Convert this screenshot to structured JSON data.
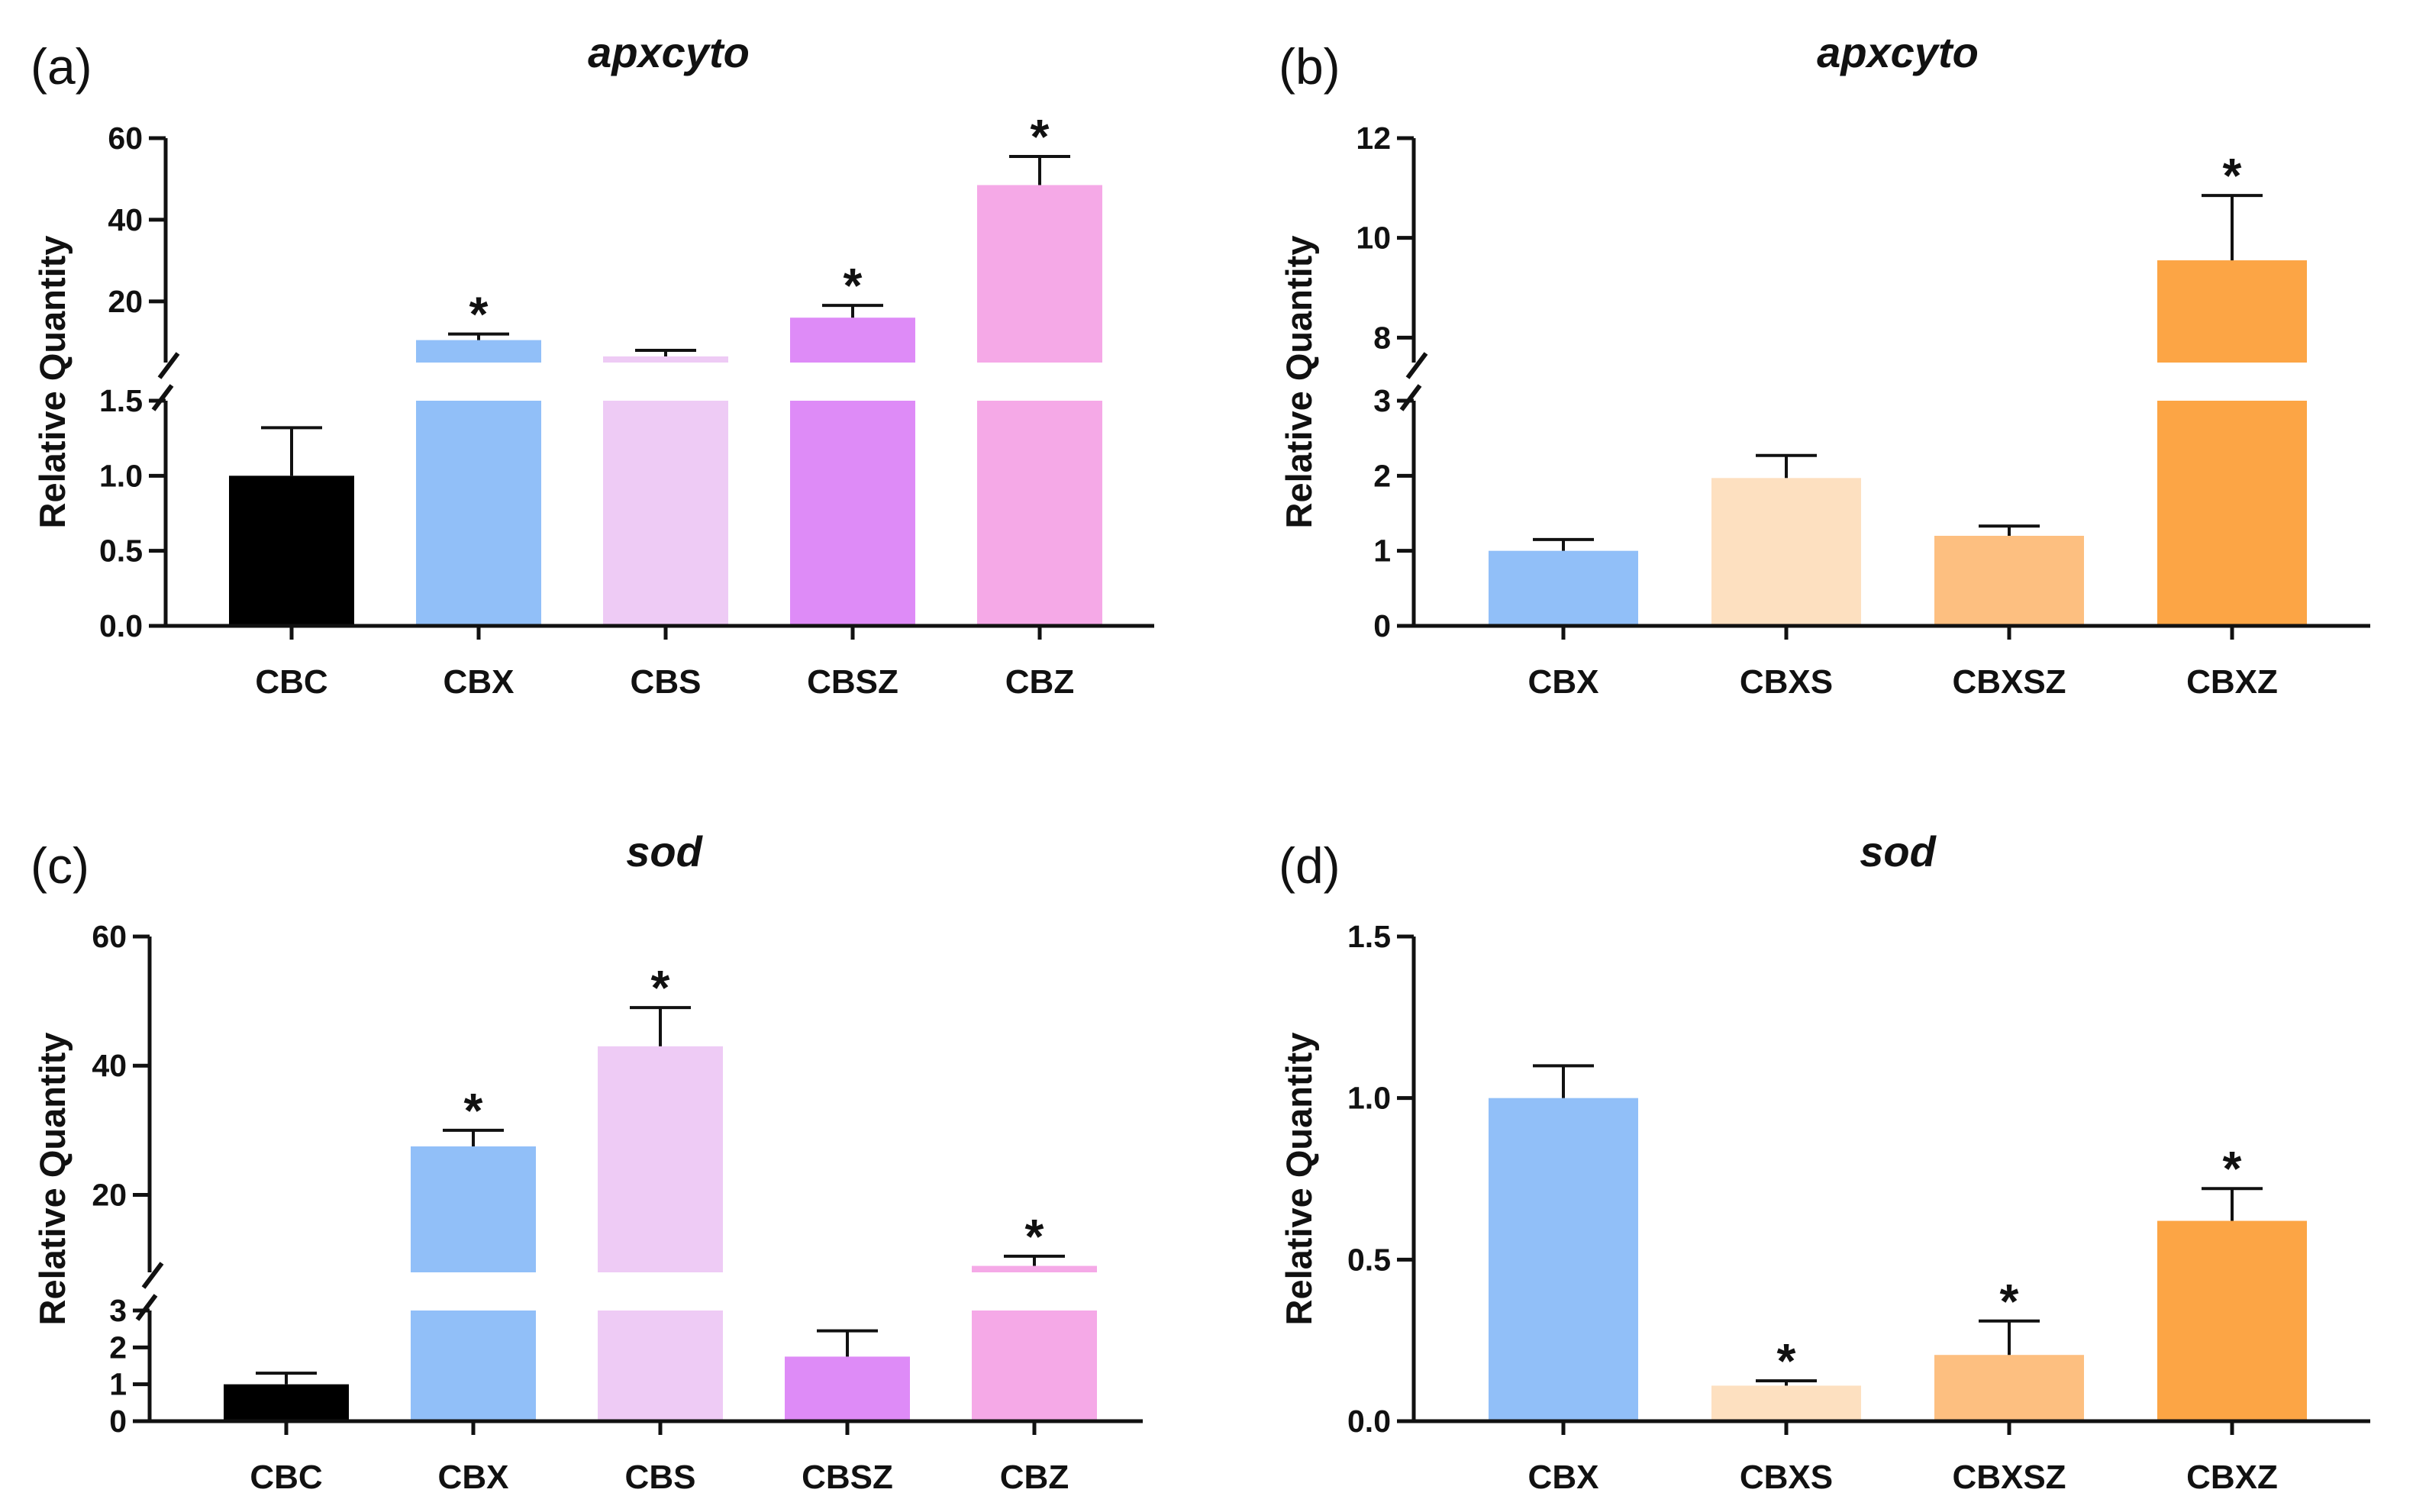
{
  "chart_data": [
    {
      "panel": "(a)",
      "type": "bar",
      "title": "apxcyto",
      "ylabel": "Relative Quantity",
      "categories": [
        "CBC",
        "CBX",
        "CBS",
        "CBSZ",
        "CBZ"
      ],
      "values": [
        1.0,
        10.5,
        6.5,
        16.0,
        48.5
      ],
      "errors": [
        0.32,
        1.5,
        1.5,
        3.0,
        7.0
      ],
      "significant": [
        false,
        true,
        false,
        true,
        true
      ],
      "colors": [
        "#000000",
        "#91bff8",
        "#eecbf5",
        "#de8bf7",
        "#f5a9e7"
      ],
      "axis_break": {
        "lower": [
          0,
          1.5
        ],
        "upper": [
          5,
          60
        ]
      },
      "yticks_lower": [
        "0.0",
        "0.5",
        "1.0",
        "1.5"
      ],
      "yticks_upper": [
        "20",
        "40",
        "60"
      ],
      "ytick_values_lower": [
        0,
        0.5,
        1.0,
        1.5
      ],
      "ytick_values_upper": [
        20,
        40,
        60
      ]
    },
    {
      "panel": "(b)",
      "type": "bar",
      "title": "apxcyto",
      "ylabel": "Relative Quantity",
      "categories": [
        "CBX",
        "CBXS",
        "CBXSZ",
        "CBXZ"
      ],
      "values": [
        1.0,
        1.97,
        1.2,
        9.55
      ],
      "errors": [
        0.15,
        0.3,
        0.13,
        1.3
      ],
      "significant": [
        false,
        false,
        false,
        true
      ],
      "colors": [
        "#91bff8",
        "#fde0c0",
        "#fdbf80",
        "#fca545"
      ],
      "axis_break": {
        "lower": [
          0,
          3
        ],
        "upper": [
          7.5,
          12
        ]
      },
      "yticks_lower": [
        "0",
        "1",
        "2",
        "3"
      ],
      "yticks_upper": [
        "8",
        "10",
        "12"
      ],
      "ytick_values_lower": [
        0,
        1,
        2,
        3
      ],
      "ytick_values_upper": [
        8,
        10,
        12
      ]
    },
    {
      "panel": "(c)",
      "type": "bar",
      "title": "sod",
      "ylabel": "Relative Quantity",
      "categories": [
        "CBC",
        "CBX",
        "CBS",
        "CBSZ",
        "CBZ"
      ],
      "values": [
        1.0,
        27.5,
        43.0,
        1.75,
        9.0
      ],
      "errors": [
        0.3,
        2.5,
        6.0,
        0.7,
        1.5
      ],
      "significant": [
        false,
        true,
        true,
        false,
        true
      ],
      "colors": [
        "#000000",
        "#91bff8",
        "#eecbf5",
        "#de8bf7",
        "#f5a9e7"
      ],
      "axis_break": {
        "lower": [
          0,
          3
        ],
        "upper": [
          8,
          60
        ]
      },
      "yticks_lower": [
        "0",
        "1",
        "2",
        "3"
      ],
      "yticks_upper": [
        "20",
        "40",
        "60"
      ],
      "ytick_values_lower": [
        0,
        1,
        2,
        3
      ],
      "ytick_values_upper": [
        20,
        40,
        60
      ]
    },
    {
      "panel": "(d)",
      "type": "bar",
      "title": "sod",
      "ylabel": "Relative Quantity",
      "categories": [
        "CBX",
        "CBXS",
        "CBXSZ",
        "CBXZ"
      ],
      "values": [
        1.0,
        0.11,
        0.205,
        0.62
      ],
      "errors": [
        0.1,
        0.015,
        0.105,
        0.1
      ],
      "significant": [
        false,
        true,
        true,
        true
      ],
      "colors": [
        "#91bff8",
        "#fde0c0",
        "#fdbf80",
        "#fca545"
      ],
      "ylim": [
        0,
        1.5
      ],
      "yticks": [
        "0.0",
        "0.5",
        "1.0",
        "1.5"
      ],
      "ytick_values": [
        0,
        0.5,
        1.0,
        1.5
      ]
    }
  ],
  "star_symbol": "*"
}
